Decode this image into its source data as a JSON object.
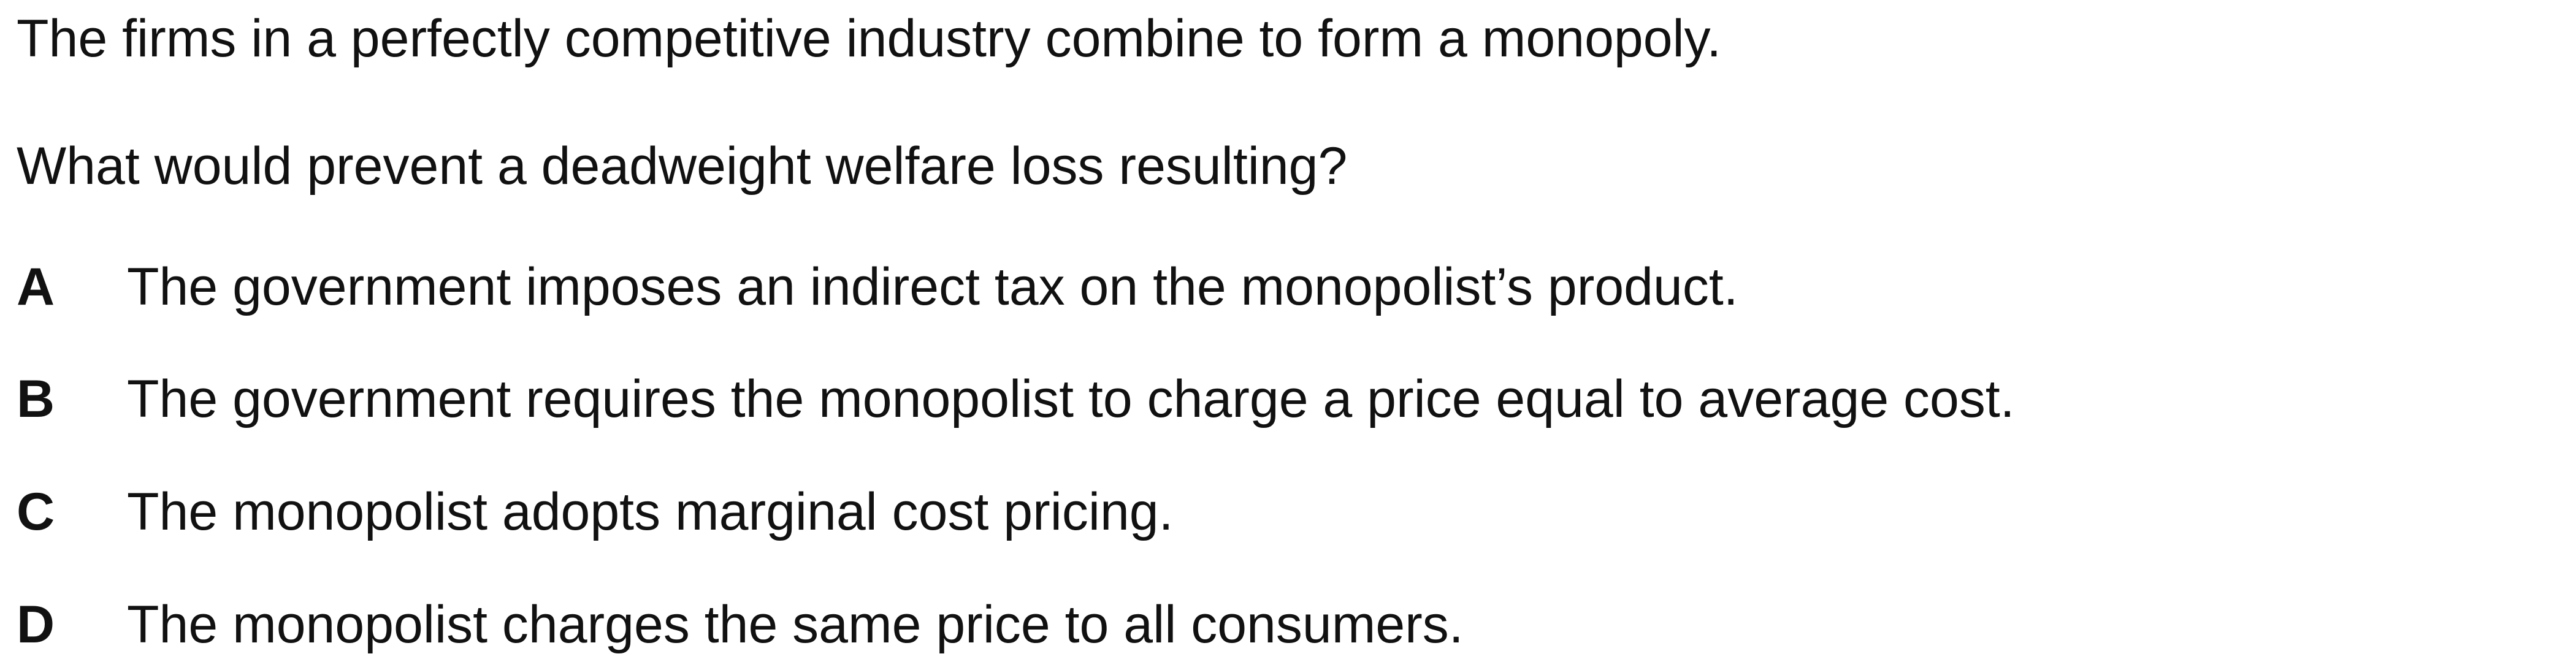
{
  "question": {
    "stem_line_1": "The firms in a perfectly competitive industry combine to form a monopoly.",
    "stem_line_2": "What would prevent a deadweight welfare loss resulting?",
    "options": [
      {
        "letter": "A",
        "text": "The government imposes an indirect tax on the monopolist’s product."
      },
      {
        "letter": "B",
        "text": "The government requires the monopolist to charge a price equal to average cost."
      },
      {
        "letter": "C",
        "text": "The monopolist adopts marginal cost pricing."
      },
      {
        "letter": "D",
        "text": "The monopolist charges the same price to all consumers."
      }
    ]
  }
}
